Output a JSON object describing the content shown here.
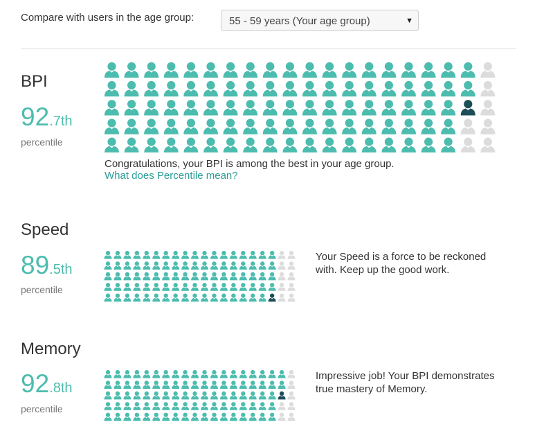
{
  "header": {
    "label": "Compare with users in the age group:",
    "select": "55 - 59 years (Your age group)"
  },
  "sections": [
    {
      "title": "BPI",
      "percentile_int": "92",
      "percentile_frac": ".7th",
      "percentile_label": "percentile",
      "icons_total": 100,
      "icons_filled": 93,
      "message": "Congratulations, your BPI is among the best in your age group.",
      "link": "What does Percentile mean?"
    },
    {
      "title": "Speed",
      "percentile_int": "89",
      "percentile_frac": ".5th",
      "percentile_label": "percentile",
      "icons_total": 100,
      "icons_filled": 90,
      "message": "Your Speed is a force to be reckoned with. Keep up the good work."
    },
    {
      "title": "Memory",
      "percentile_int": "92",
      "percentile_frac": ".8th",
      "percentile_label": "percentile",
      "icons_total": 100,
      "icons_filled": 93,
      "message": "Impressive job! Your BPI demonstrates true mastery of Memory."
    }
  ]
}
